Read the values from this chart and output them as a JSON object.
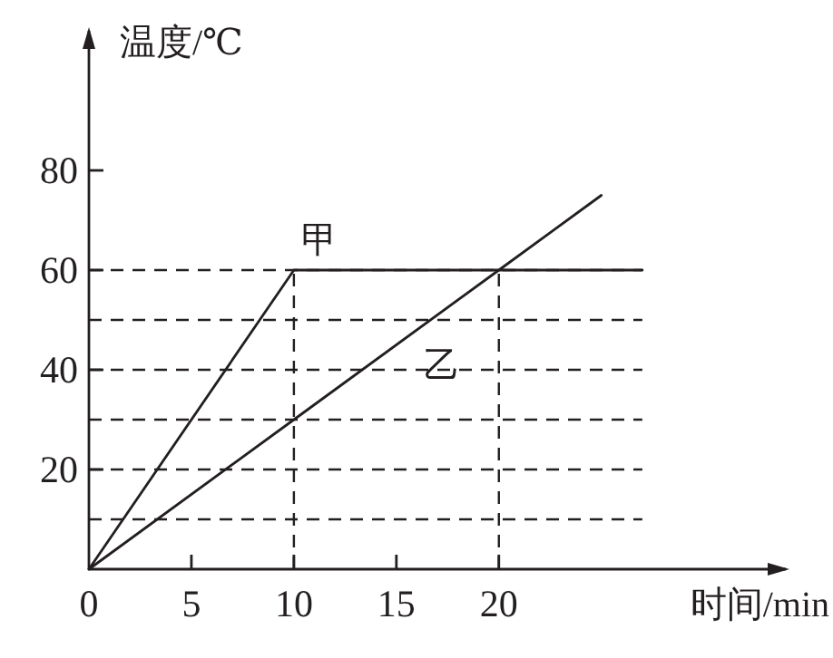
{
  "chart_data": {
    "type": "line",
    "xlabel": "时间/min",
    "ylabel": "温度/℃",
    "xlim": [
      0,
      34
    ],
    "ylim": [
      0,
      108
    ],
    "xticks": [
      0,
      5,
      10,
      15,
      20
    ],
    "yticks": [
      20,
      40,
      60,
      80
    ],
    "marker": "none",
    "line_style": "solid",
    "grid": false,
    "legend": false,
    "series": [
      {
        "name": "甲",
        "color": "#231f20",
        "x": [
          0,
          10,
          27
        ],
        "values": [
          0,
          60,
          60
        ]
      },
      {
        "name": "乙",
        "color": "#231f20",
        "x": [
          0,
          10,
          20,
          25
        ],
        "values": [
          0,
          30,
          60,
          75
        ]
      }
    ],
    "ref_lines": [
      {
        "axis": "y",
        "value": 10,
        "color": "#231f20",
        "line_style": "dashed"
      },
      {
        "axis": "y",
        "value": 20,
        "color": "#231f20",
        "line_style": "dashed"
      },
      {
        "axis": "y",
        "value": 30,
        "color": "#231f20",
        "line_style": "dashed"
      },
      {
        "axis": "y",
        "value": 40,
        "color": "#231f20",
        "line_style": "dashed"
      },
      {
        "axis": "y",
        "value": 50,
        "color": "#231f20",
        "line_style": "dashed"
      },
      {
        "axis": "y",
        "value": 60,
        "color": "#231f20",
        "line_style": "dashed"
      },
      {
        "axis": "x",
        "value": 10,
        "color": "#231f20",
        "line_style": "dashed"
      },
      {
        "axis": "x",
        "value": 20,
        "color": "#231f20",
        "line_style": "dashed"
      }
    ]
  }
}
